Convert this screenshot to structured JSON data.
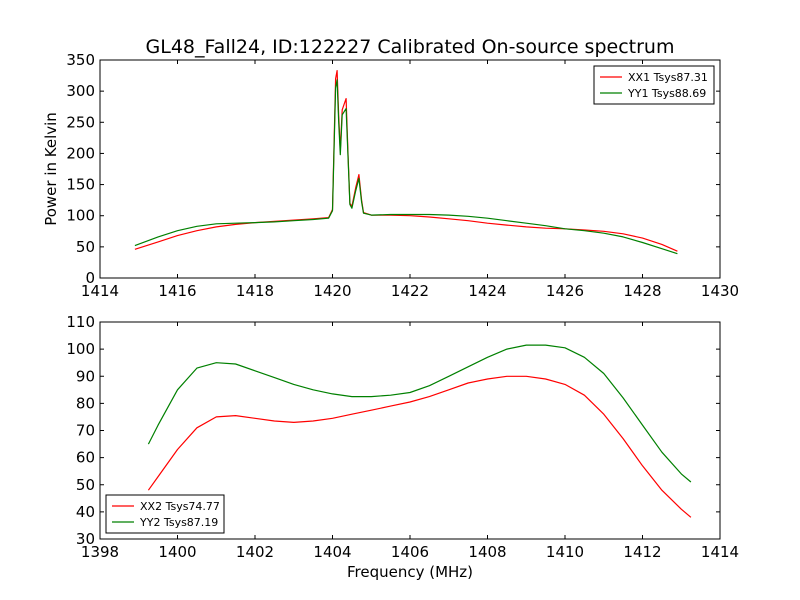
{
  "figure": {
    "title": "GL48_Fall24, ID:122227 Calibrated On-source spectrum"
  },
  "chart_data": [
    {
      "type": "line",
      "title": "GL48_Fall24, ID:122227 Calibrated On-source spectrum",
      "xlabel": "",
      "ylabel": "Power in Kelvin",
      "xlim": [
        1414,
        1430
      ],
      "ylim": [
        0,
        350
      ],
      "xticks": [
        1414,
        1416,
        1418,
        1420,
        1422,
        1424,
        1426,
        1428,
        1430
      ],
      "yticks": [
        0,
        50,
        100,
        150,
        200,
        250,
        300,
        350
      ],
      "legend_position": "top-right",
      "grid": false,
      "series": [
        {
          "name": "XX1 Tsys87.31",
          "color": "#ff0000",
          "x": [
            1414.9,
            1415.5,
            1416.0,
            1416.5,
            1417.0,
            1417.5,
            1418.0,
            1418.5,
            1419.0,
            1419.5,
            1419.9,
            1420.0,
            1420.08,
            1420.12,
            1420.16,
            1420.2,
            1420.25,
            1420.35,
            1420.4,
            1420.45,
            1420.5,
            1420.6,
            1420.68,
            1420.75,
            1420.8,
            1421.0,
            1421.5,
            1422.0,
            1422.5,
            1423.0,
            1423.5,
            1424.0,
            1424.5,
            1425.0,
            1425.5,
            1426.0,
            1426.5,
            1427.0,
            1427.5,
            1428.0,
            1428.5,
            1428.9
          ],
          "y": [
            46,
            58,
            68,
            76,
            82,
            86,
            89,
            91,
            93,
            95,
            97,
            110,
            320,
            333,
            260,
            205,
            270,
            288,
            200,
            120,
            115,
            145,
            166,
            125,
            105,
            101,
            101,
            100,
            98,
            95,
            92,
            88,
            85,
            82,
            80,
            79,
            77,
            75,
            71,
            64,
            54,
            43
          ]
        },
        {
          "name": "YY1 Tsys88.69",
          "color": "#008000",
          "x": [
            1414.9,
            1415.5,
            1416.0,
            1416.5,
            1417.0,
            1417.5,
            1418.0,
            1418.5,
            1419.0,
            1419.5,
            1419.9,
            1420.0,
            1420.08,
            1420.12,
            1420.16,
            1420.2,
            1420.25,
            1420.35,
            1420.4,
            1420.45,
            1420.5,
            1420.6,
            1420.68,
            1420.75,
            1420.8,
            1421.0,
            1421.5,
            1422.0,
            1422.5,
            1423.0,
            1423.5,
            1424.0,
            1424.5,
            1425.0,
            1425.5,
            1426.0,
            1426.5,
            1427.0,
            1427.5,
            1428.0,
            1428.5,
            1428.9
          ],
          "y": [
            52,
            66,
            76,
            83,
            87,
            88,
            89,
            90,
            92,
            94,
            96,
            108,
            305,
            318,
            250,
            198,
            262,
            272,
            195,
            118,
            112,
            140,
            160,
            122,
            104,
            101,
            102,
            102,
            102,
            101,
            99,
            96,
            92,
            88,
            84,
            79,
            76,
            72,
            66,
            57,
            47,
            39
          ]
        }
      ]
    },
    {
      "type": "line",
      "title": "",
      "xlabel": "Frequency (MHz)",
      "ylabel": "",
      "xlim": [
        1398,
        1414
      ],
      "ylim": [
        30,
        110
      ],
      "xticks": [
        1398,
        1400,
        1402,
        1404,
        1406,
        1408,
        1410,
        1412,
        1414
      ],
      "yticks": [
        30,
        40,
        50,
        60,
        70,
        80,
        90,
        100,
        110
      ],
      "legend_position": "bottom-left",
      "grid": false,
      "series": [
        {
          "name": "XX2 Tsys74.77",
          "color": "#ff0000",
          "x": [
            1399.25,
            1399.5,
            1400.0,
            1400.5,
            1401.0,
            1401.5,
            1402.0,
            1402.5,
            1403.0,
            1403.5,
            1404.0,
            1404.5,
            1405.0,
            1405.5,
            1406.0,
            1406.5,
            1407.0,
            1407.5,
            1408.0,
            1408.5,
            1409.0,
            1409.5,
            1410.0,
            1410.5,
            1411.0,
            1411.5,
            1412.0,
            1412.5,
            1413.0,
            1413.25
          ],
          "y": [
            48,
            53,
            63,
            71,
            75,
            75.5,
            74.5,
            73.5,
            73,
            73.5,
            74.5,
            76,
            77.5,
            79,
            80.5,
            82.5,
            85,
            87.5,
            89,
            90,
            90,
            89,
            87,
            83,
            76,
            67,
            57,
            48,
            41,
            38
          ]
        },
        {
          "name": "YY2 Tsys87.19",
          "color": "#008000",
          "x": [
            1399.25,
            1399.5,
            1400.0,
            1400.5,
            1401.0,
            1401.5,
            1402.0,
            1402.5,
            1403.0,
            1403.5,
            1404.0,
            1404.5,
            1405.0,
            1405.5,
            1406.0,
            1406.5,
            1407.0,
            1407.5,
            1408.0,
            1408.5,
            1409.0,
            1409.5,
            1410.0,
            1410.5,
            1411.0,
            1411.5,
            1412.0,
            1412.5,
            1413.0,
            1413.25
          ],
          "y": [
            65,
            72,
            85,
            93,
            95,
            94.5,
            92,
            89.5,
            87,
            85,
            83.5,
            82.5,
            82.5,
            83,
            84,
            86.5,
            90,
            93.5,
            97,
            100,
            101.5,
            101.5,
            100.5,
            97,
            91,
            82,
            72,
            62,
            54,
            51
          ]
        }
      ]
    }
  ]
}
